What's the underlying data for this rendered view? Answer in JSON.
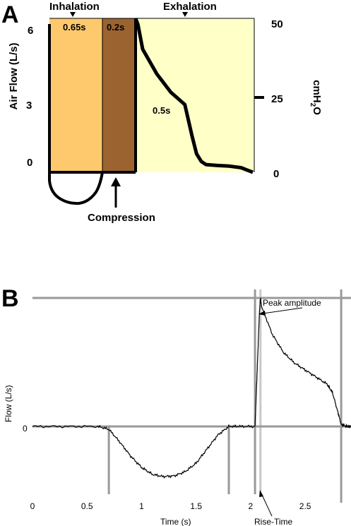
{
  "chart_data": [
    {
      "type": "line",
      "panel_label": "A",
      "ylabel_left": "Air Flow  (L/s)",
      "ylabel_right": "cmH2O",
      "y_ticks_left": [
        "6",
        "3",
        "0"
      ],
      "y_ticks_right": [
        "50",
        "25",
        "0"
      ],
      "phase_labels": {
        "inhalation": "Inhalation",
        "exhalation": "Exhalation"
      },
      "phase_durations": [
        {
          "label": "0.65s",
          "color": "#fdc96c"
        },
        {
          "label": "0.2s",
          "color": "#9a6330"
        },
        {
          "label": "0.5s",
          "color": "#ffffc8"
        }
      ],
      "annotation": "Compression",
      "ylim_left": [
        0,
        6
      ],
      "ylim_right": [
        0,
        50
      ],
      "pressure_trace": {
        "t_norm": [
          0.0,
          0.02,
          0.06,
          0.18,
          0.3,
          0.42,
          0.48,
          0.52,
          0.56,
          0.6,
          0.7,
          0.8,
          0.9,
          0.96,
          1.0
        ],
        "cmH2O": [
          50,
          48,
          40,
          32,
          26,
          22,
          12,
          6,
          3.5,
          2.5,
          2.2,
          2.0,
          1.5,
          0.6,
          0
        ]
      }
    },
    {
      "type": "line",
      "panel_label": "B",
      "xlabel": "Time (s)",
      "ylabel": "Flow (L/s)",
      "x_ticks": [
        "0",
        "0.5",
        "1",
        "1.5",
        "2",
        "2.5"
      ],
      "x_tick_values": [
        0,
        0.5,
        1,
        1.5,
        2,
        2.5
      ],
      "y_ticks": [
        "0"
      ],
      "xlim": [
        0,
        2.92
      ],
      "annotations": {
        "peak": "Peak amplitude",
        "rise": "Rise-Time"
      },
      "markers_x": [
        0.7,
        1.8,
        2.04,
        2.09,
        2.83
      ],
      "series": [
        {
          "x": [
            0,
            0.3,
            0.6,
            0.7,
            0.8,
            0.9,
            1.0,
            1.1,
            1.2,
            1.3,
            1.4,
            1.5,
            1.6,
            1.7,
            1.8,
            1.9,
            2.04,
            2.06,
            2.08,
            2.09,
            2.1,
            2.2,
            2.3,
            2.4,
            2.5,
            2.6,
            2.7,
            2.75,
            2.8,
            2.83,
            2.88,
            2.92
          ],
          "y": [
            0,
            0,
            0,
            -0.04,
            -0.22,
            -0.42,
            -0.58,
            -0.68,
            -0.71,
            -0.7,
            -0.64,
            -0.52,
            -0.32,
            -0.12,
            0,
            0,
            0,
            0.8,
            1.6,
            1.82,
            1.7,
            1.3,
            1.05,
            0.9,
            0.8,
            0.7,
            0.6,
            0.48,
            0.2,
            0.03,
            0,
            0
          ]
        }
      ]
    }
  ]
}
